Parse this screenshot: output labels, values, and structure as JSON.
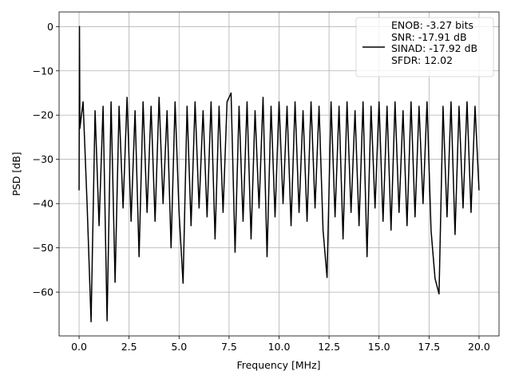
{
  "chart_data": {
    "type": "line",
    "xlabel": "Frequency [MHz]",
    "ylabel": "PSD [dB]",
    "xlim": [
      -1.0,
      21.0
    ],
    "ylim": [
      -69.9,
      3.3
    ],
    "xticks": [
      {
        "value": 0,
        "label": "0.0"
      },
      2.5,
      {
        "value": 5,
        "label": "5.0"
      },
      7.5,
      {
        "value": 10,
        "label": "10.0"
      },
      12.5,
      {
        "value": 15,
        "label": "15.0"
      },
      17.5,
      {
        "value": 20,
        "label": "20.0"
      }
    ],
    "yticks": [
      {
        "value": -60,
        "label": "−60"
      },
      {
        "value": -50,
        "label": "−50"
      },
      {
        "value": -40,
        "label": "−40"
      },
      {
        "value": -30,
        "label": "−30"
      },
      {
        "value": -20,
        "label": "−20"
      },
      {
        "value": -10,
        "label": "−10"
      },
      0
    ],
    "grid": true,
    "legend": "upper right",
    "x": [
      0,
      0.02,
      0.04,
      0.2,
      0.4,
      0.6,
      0.8,
      1.0,
      1.2,
      1.4,
      1.6,
      1.8,
      2.0,
      2.2,
      2.4,
      2.6,
      2.8,
      3.0,
      3.2,
      3.4,
      3.6,
      3.8,
      4.0,
      4.2,
      4.4,
      4.6,
      4.8,
      5.0,
      5.2,
      5.4,
      5.6,
      5.8,
      6.0,
      6.2,
      6.4,
      6.6,
      6.8,
      7.0,
      7.2,
      7.4,
      7.6,
      7.8,
      8.0,
      8.2,
      8.4,
      8.6,
      8.8,
      9.0,
      9.2,
      9.4,
      9.6,
      9.8,
      10.0,
      10.2,
      10.4,
      10.6,
      10.8,
      11.0,
      11.2,
      11.4,
      11.6,
      11.8,
      12.0,
      12.2,
      12.4,
      12.6,
      12.8,
      13.0,
      13.2,
      13.4,
      13.6,
      13.8,
      14.0,
      14.2,
      14.4,
      14.6,
      14.8,
      15.0,
      15.2,
      15.4,
      15.6,
      15.8,
      16.0,
      16.2,
      16.4,
      16.6,
      16.8,
      17.0,
      17.2,
      17.4,
      17.6,
      17.8,
      18.0,
      18.2,
      18.4,
      18.6,
      18.8,
      19.0,
      19.2,
      19.4,
      19.6,
      19.8,
      20.0
    ],
    "series": [
      {
        "name": "ENOB: -3.27 bits\nSNR: -17.91 dB\nSINAD: -17.92 dB\nSFDR: 12.02",
        "color": "#000000",
        "values": [
          -37,
          0,
          -23,
          -17,
          -40,
          -66.7,
          -19,
          -45,
          -18,
          -66.5,
          -17,
          -57.8,
          -18,
          -41,
          -16,
          -44,
          -19,
          -52,
          -17,
          -42,
          -18,
          -44,
          -16,
          -40,
          -19,
          -50,
          -17,
          -42,
          -58,
          -18,
          -45,
          -17,
          -41,
          -19,
          -43,
          -17,
          -48,
          -18,
          -42,
          -17,
          -15,
          -51,
          -18,
          -44,
          -17,
          -48,
          -19,
          -41,
          -16,
          -52,
          -18,
          -43,
          -17,
          -40,
          -18,
          -45,
          -17,
          -42,
          -19,
          -44,
          -17,
          -41,
          -18,
          -46,
          -56.7,
          -17,
          -43,
          -18,
          -48,
          -17,
          -42,
          -19,
          -45,
          -17,
          -52,
          -18,
          -41,
          -17,
          -44,
          -18,
          -46,
          -17,
          -42,
          -19,
          -45,
          -17,
          -43,
          -18,
          -40,
          -17,
          -46,
          -56.9,
          -60.4,
          -18,
          -43,
          -17,
          -47,
          -18,
          -41,
          -17,
          -42,
          -18,
          -37
        ]
      }
    ]
  }
}
